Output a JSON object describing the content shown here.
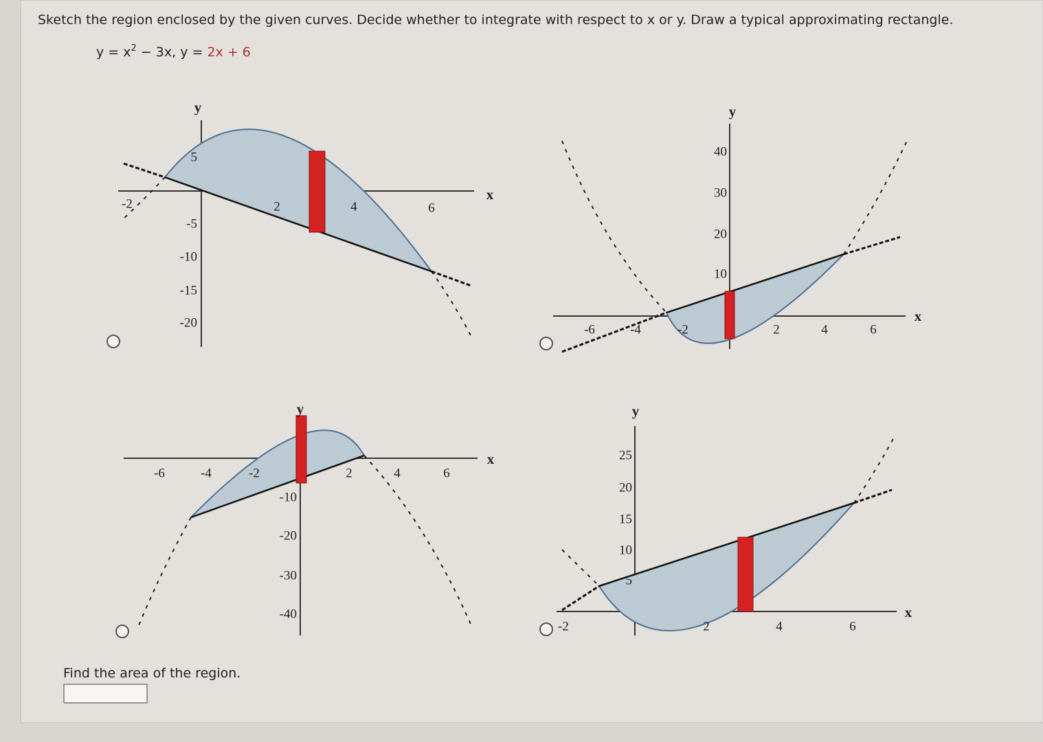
{
  "question": "Sketch the region enclosed by the given curves. Decide whether to integrate with respect to x or y. Draw a typical approximating rectangle.",
  "equation": {
    "lhs1": "y = x",
    "exponent": "2",
    "rest1": " − 3x,  ",
    "lhs2": "y = ",
    "rhs2": "2x + 6"
  },
  "options": [
    {
      "y_label": "y",
      "x_label": "x",
      "x_ticks": [
        "-2",
        "2",
        "4",
        "6"
      ],
      "y_ticks": [
        "5",
        "-5",
        "-10",
        "-15",
        "-20"
      ]
    },
    {
      "y_label": "y",
      "x_label": "x",
      "x_ticks": [
        "-6",
        "-4",
        "-2",
        "2",
        "4",
        "6"
      ],
      "y_ticks": [
        "40",
        "30",
        "20",
        "10"
      ]
    },
    {
      "y_label": "y",
      "x_label": "x",
      "x_ticks": [
        "-6",
        "-4",
        "-2",
        "2",
        "4",
        "6"
      ],
      "y_ticks": [
        "-10",
        "-20",
        "-30",
        "-40"
      ]
    },
    {
      "y_label": "y",
      "x_label": "x",
      "x_ticks": [
        "-2",
        "2",
        "4",
        "6"
      ],
      "y_ticks": [
        "25",
        "20",
        "15",
        "10",
        "5"
      ]
    }
  ],
  "prompt": "Find the area of the region."
}
